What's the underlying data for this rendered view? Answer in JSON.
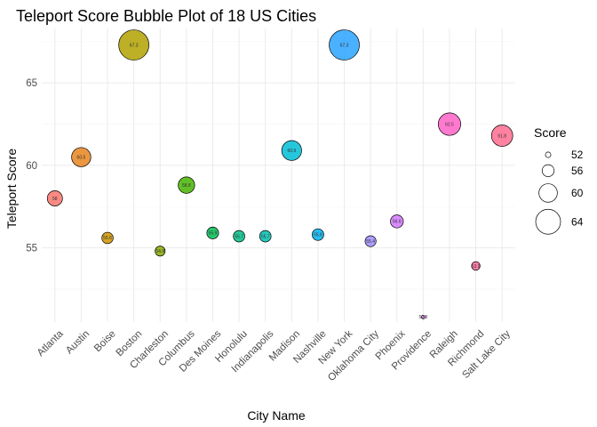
{
  "chart_data": {
    "type": "scatter",
    "title": "Teleport Score Bubble Plot of 18 US Cities",
    "xlabel": "City Name",
    "ylabel": "Teleport Score",
    "categories": [
      "Atlanta",
      "Austin",
      "Boise",
      "Boston",
      "Charleston",
      "Columbus",
      "Des Moines",
      "Honolulu",
      "Indianapolis",
      "Madison",
      "Nashville",
      "New York",
      "Oklahoma City",
      "Phoenix",
      "Providence",
      "Raleigh",
      "Richmond",
      "Salt Lake City"
    ],
    "values": [
      58.0,
      60.5,
      55.6,
      67.3,
      54.8,
      58.8,
      55.9,
      55.7,
      55.7,
      60.9,
      55.8,
      67.3,
      55.4,
      56.6,
      50.8,
      62.5,
      53.9,
      61.8
    ],
    "data_labels": [
      "58",
      "60.5",
      "55.6",
      "67.3",
      "54.8",
      "58.8",
      "55.9",
      "55.7",
      "55.7",
      "60.9",
      "55.8",
      "67.3",
      "55.4",
      "56.6",
      "50.8",
      "62.5",
      "53.9",
      "61.8"
    ],
    "colors": [
      "#F8766D",
      "#E7851E",
      "#D09400",
      "#B2A100",
      "#89AC00",
      "#45B500",
      "#00BC51",
      "#00C087",
      "#00C0B2",
      "#00BCD6",
      "#00B3F2",
      "#29A3FF",
      "#9C8DFF",
      "#D277FF",
      "#F166E8",
      "#FF61C7",
      "#FF689E",
      "#FF6C91"
    ],
    "ylim": [
      50.5,
      68.3
    ],
    "yticks": [
      55,
      60,
      65
    ],
    "grid": true,
    "size_legend": {
      "title": "Score",
      "labels": [
        "52",
        "56",
        "60",
        "64"
      ],
      "values": [
        52,
        56,
        60,
        64
      ],
      "placement": "right"
    }
  }
}
